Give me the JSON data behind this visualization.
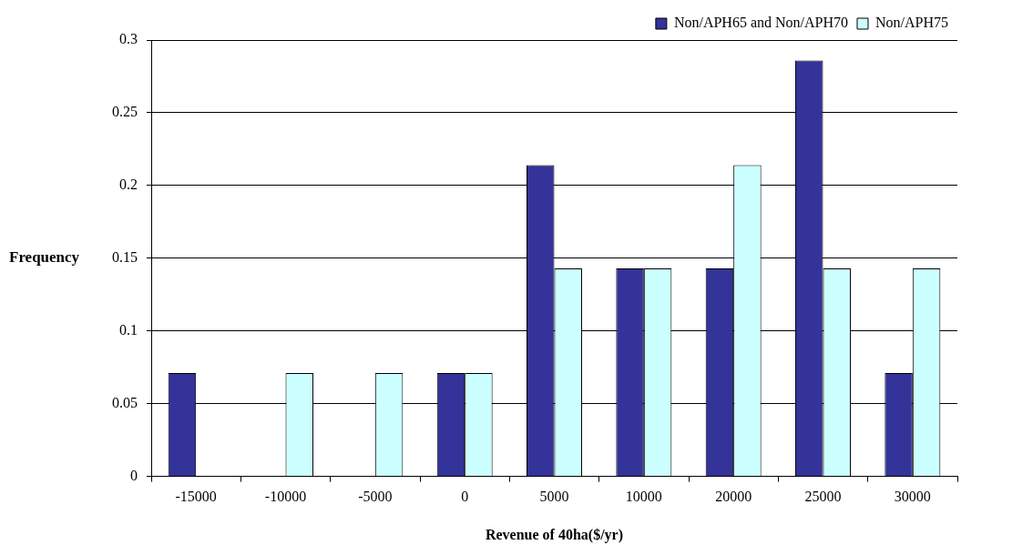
{
  "chart_data": {
    "type": "bar",
    "xlabel": "Revenue of 40ha($/yr)",
    "ylabel": "Frequency",
    "categories": [
      "-15000",
      "-10000",
      "-5000",
      "0",
      "5000",
      "10000",
      "20000",
      "25000",
      "30000"
    ],
    "series": [
      {
        "name": "Non/APH65 and Non/APH70",
        "color": "#333399",
        "values": [
          0.071,
          0,
          0,
          0.071,
          0.214,
          0.143,
          0.143,
          0.286,
          0.071
        ]
      },
      {
        "name": "Non/APH75",
        "color": "#ccffff",
        "values": [
          0,
          0.071,
          0.071,
          0.071,
          0.143,
          0.143,
          0.214,
          0.143,
          0.143
        ]
      }
    ],
    "ylim": [
      0,
      0.3
    ],
    "yticks": [
      0,
      0.05,
      0.1,
      0.15,
      0.2,
      0.25,
      0.3
    ],
    "grid": "y",
    "legend": "top right"
  }
}
